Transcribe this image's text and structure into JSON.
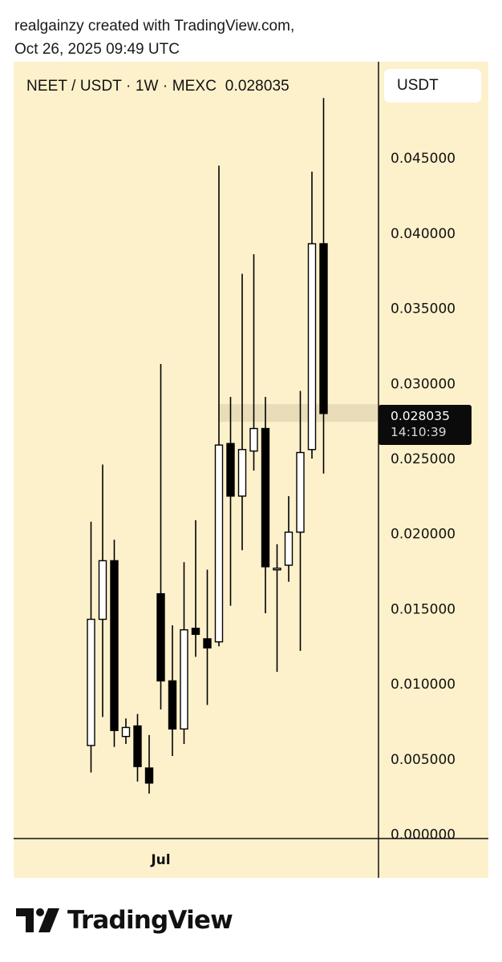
{
  "caption": {
    "line1": "realgainzy created with TradingView.com,",
    "line2": "Oct 26, 2025 09:49 UTC"
  },
  "header": {
    "pair": "NEET / USDT",
    "interval": "1W",
    "exchange": "MEXC",
    "sep": " · ",
    "last_price": "0.028035",
    "currency_button": "USDT"
  },
  "price_label": {
    "price": "0.028035",
    "countdown": "14:10:39"
  },
  "logo": {
    "text": "TradingView"
  },
  "colors": {
    "background": "#fdf1cb",
    "candle_up_fill": "#ffffff",
    "candle_down_fill": "#000000",
    "candle_outline": "#000000",
    "price_line_band": "#e4d8b4"
  },
  "chart_data": {
    "type": "candlestick",
    "title": "NEET / USDT · 1W · MEXC",
    "ylim": [
      0,
      0.0485
    ],
    "y_ticks": [
      "0.045000",
      "0.040000",
      "0.035000",
      "0.030000",
      "0.025000",
      "0.020000",
      "0.015000",
      "0.010000",
      "0.005000",
      "0.000000"
    ],
    "y_tick_values": [
      0.045,
      0.04,
      0.035,
      0.03,
      0.025,
      0.02,
      0.015,
      0.01,
      0.005,
      0
    ],
    "x_tick_labels": [
      "Jul"
    ],
    "x_tick_candle_index": 6,
    "last_price": 0.028035,
    "candles": [
      {
        "open": 0.0059,
        "high": 0.0208,
        "low": 0.0041,
        "close": 0.0143
      },
      {
        "open": 0.0143,
        "high": 0.0246,
        "low": 0.0078,
        "close": 0.0182
      },
      {
        "open": 0.0182,
        "high": 0.0196,
        "low": 0.0058,
        "close": 0.0069
      },
      {
        "open": 0.0065,
        "high": 0.0077,
        "low": 0.006,
        "close": 0.0071
      },
      {
        "open": 0.0072,
        "high": 0.008,
        "low": 0.0035,
        "close": 0.0045
      },
      {
        "open": 0.0044,
        "high": 0.0066,
        "low": 0.0027,
        "close": 0.0034
      },
      {
        "open": 0.016,
        "high": 0.0313,
        "low": 0.0083,
        "close": 0.0102
      },
      {
        "open": 0.0102,
        "high": 0.0139,
        "low": 0.0052,
        "close": 0.007
      },
      {
        "open": 0.007,
        "high": 0.0181,
        "low": 0.006,
        "close": 0.0136
      },
      {
        "open": 0.0137,
        "high": 0.0209,
        "low": 0.0118,
        "close": 0.0133
      },
      {
        "open": 0.013,
        "high": 0.0176,
        "low": 0.0086,
        "close": 0.0124
      },
      {
        "open": 0.0128,
        "high": 0.0445,
        "low": 0.0125,
        "close": 0.0259
      },
      {
        "open": 0.026,
        "high": 0.0291,
        "low": 0.0152,
        "close": 0.0225
      },
      {
        "open": 0.0225,
        "high": 0.0373,
        "low": 0.0189,
        "close": 0.0256
      },
      {
        "open": 0.0255,
        "high": 0.0386,
        "low": 0.0242,
        "close": 0.027
      },
      {
        "open": 0.027,
        "high": 0.0291,
        "low": 0.0147,
        "close": 0.0178
      },
      {
        "open": 0.0177,
        "high": 0.0193,
        "low": 0.0108,
        "close": 0.0177
      },
      {
        "open": 0.0179,
        "high": 0.0225,
        "low": 0.0168,
        "close": 0.0201
      },
      {
        "open": 0.0201,
        "high": 0.0295,
        "low": 0.0122,
        "close": 0.0254
      },
      {
        "open": 0.0256,
        "high": 0.0441,
        "low": 0.025,
        "close": 0.0393
      },
      {
        "open": 0.0393,
        "high": 0.049,
        "low": 0.024,
        "close": 0.028
      }
    ]
  }
}
